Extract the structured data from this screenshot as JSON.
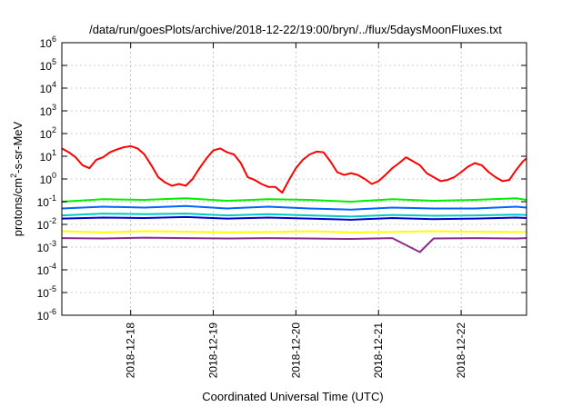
{
  "chart_data": {
    "type": "line",
    "title": "/data/run/goesPlots/archive/2018-12-22/19:00/bryn/../flux/5daysMoonFluxes.txt",
    "xlabel": "Coordinated Universal Time (UTC)",
    "ylabel": {
      "pre": "protons/cm",
      "sup": "2",
      "post": "-s-sr-MeV"
    },
    "yscale": "log",
    "ylim": [
      1e-06,
      1000000.0
    ],
    "xlim": [
      "2018-12-17T04:00",
      "2018-12-22T19:00"
    ],
    "grid": true,
    "y_ticks": [
      {
        "value": 1e-06,
        "base": "10",
        "exp": "-6"
      },
      {
        "value": 1e-05,
        "base": "10",
        "exp": "-5"
      },
      {
        "value": 0.0001,
        "base": "10",
        "exp": "-4"
      },
      {
        "value": 0.001,
        "base": "10",
        "exp": "-3"
      },
      {
        "value": 0.01,
        "base": "10",
        "exp": "-2"
      },
      {
        "value": 0.1,
        "base": "10",
        "exp": "-1"
      },
      {
        "value": 1,
        "base": "10",
        "exp": "0"
      },
      {
        "value": 10.0,
        "base": "10",
        "exp": "1"
      },
      {
        "value": 100.0,
        "base": "10",
        "exp": "2"
      },
      {
        "value": 1000.0,
        "base": "10",
        "exp": "3"
      },
      {
        "value": 10000.0,
        "base": "10",
        "exp": "4"
      },
      {
        "value": 100000.0,
        "base": "10",
        "exp": "5"
      },
      {
        "value": 1000000.0,
        "base": "10",
        "exp": "6"
      }
    ],
    "x_ticks": [
      {
        "value": "2018-12-18T00:00",
        "label": "2018-12-18"
      },
      {
        "value": "2018-12-19T00:00",
        "label": "2018-12-19"
      },
      {
        "value": "2018-12-20T00:00",
        "label": "2018-12-20"
      },
      {
        "value": "2018-12-21T00:00",
        "label": "2018-12-21"
      },
      {
        "value": "2018-12-22T00:00",
        "label": "2018-12-22"
      }
    ],
    "series": [
      {
        "color": "#ff0000",
        "x": [
          "2018-12-17T04:00",
          "2018-12-17T06:00",
          "2018-12-17T08:00",
          "2018-12-17T10:00",
          "2018-12-17T12:00",
          "2018-12-17T14:00",
          "2018-12-17T16:00",
          "2018-12-17T18:00",
          "2018-12-17T20:00",
          "2018-12-17T22:00",
          "2018-12-18T00:00",
          "2018-12-18T02:00",
          "2018-12-18T04:00",
          "2018-12-18T06:00",
          "2018-12-18T08:00",
          "2018-12-18T10:00",
          "2018-12-18T12:00",
          "2018-12-18T14:00",
          "2018-12-18T16:00",
          "2018-12-18T18:00",
          "2018-12-18T20:00",
          "2018-12-18T22:00",
          "2018-12-19T00:00",
          "2018-12-19T02:00",
          "2018-12-19T04:00",
          "2018-12-19T06:00",
          "2018-12-19T08:00",
          "2018-12-19T10:00",
          "2018-12-19T12:00",
          "2018-12-19T14:00",
          "2018-12-19T16:00",
          "2018-12-19T18:00",
          "2018-12-19T20:00",
          "2018-12-19T22:00",
          "2018-12-20T00:00",
          "2018-12-20T02:00",
          "2018-12-20T04:00",
          "2018-12-20T06:00",
          "2018-12-20T08:00",
          "2018-12-20T10:00",
          "2018-12-20T12:00",
          "2018-12-20T14:00",
          "2018-12-20T16:00",
          "2018-12-20T18:00",
          "2018-12-20T20:00",
          "2018-12-20T22:00",
          "2018-12-21T00:00",
          "2018-12-21T02:00",
          "2018-12-21T04:00",
          "2018-12-21T06:00",
          "2018-12-21T08:00",
          "2018-12-21T10:00",
          "2018-12-21T12:00",
          "2018-12-21T14:00",
          "2018-12-21T16:00",
          "2018-12-21T18:00",
          "2018-12-21T20:00",
          "2018-12-21T22:00",
          "2018-12-22T00:00",
          "2018-12-22T02:00",
          "2018-12-22T04:00",
          "2018-12-22T06:00",
          "2018-12-22T08:00",
          "2018-12-22T10:00",
          "2018-12-22T12:00",
          "2018-12-22T14:00",
          "2018-12-22T16:00",
          "2018-12-22T18:00",
          "2018-12-22T19:00"
        ],
        "values": [
          22,
          15,
          9,
          4,
          3,
          7,
          9,
          15,
          20,
          25,
          28,
          22,
          12,
          4,
          1.2,
          0.7,
          0.5,
          0.6,
          0.5,
          1,
          3,
          8,
          18,
          22,
          15,
          12,
          5,
          1.2,
          0.9,
          0.6,
          0.45,
          0.45,
          0.25,
          0.9,
          3,
          7,
          12,
          16,
          15,
          6,
          2,
          1.5,
          1.8,
          1.5,
          1,
          0.6,
          0.8,
          1.5,
          3,
          5,
          9,
          6,
          4,
          1.8,
          1.2,
          0.8,
          0.9,
          1.2,
          2,
          3.5,
          5,
          4,
          2,
          1.2,
          0.8,
          0.9,
          2.5,
          6,
          8
        ]
      },
      {
        "color": "#00ee00",
        "x": [
          "2018-12-17T04:00",
          "2018-12-17T16:00",
          "2018-12-18T04:00",
          "2018-12-18T16:00",
          "2018-12-19T04:00",
          "2018-12-19T16:00",
          "2018-12-20T04:00",
          "2018-12-20T16:00",
          "2018-12-21T04:00",
          "2018-12-21T16:00",
          "2018-12-22T04:00",
          "2018-12-22T16:00",
          "2018-12-22T19:00"
        ],
        "values": [
          0.1,
          0.13,
          0.12,
          0.14,
          0.11,
          0.13,
          0.12,
          0.1,
          0.13,
          0.11,
          0.12,
          0.14,
          0.12
        ]
      },
      {
        "color": "#0066ff",
        "x": [
          "2018-12-17T04:00",
          "2018-12-17T16:00",
          "2018-12-18T04:00",
          "2018-12-18T16:00",
          "2018-12-19T04:00",
          "2018-12-19T16:00",
          "2018-12-20T04:00",
          "2018-12-20T16:00",
          "2018-12-21T04:00",
          "2018-12-21T16:00",
          "2018-12-22T04:00",
          "2018-12-22T16:00",
          "2018-12-22T19:00"
        ],
        "values": [
          0.05,
          0.06,
          0.055,
          0.065,
          0.05,
          0.06,
          0.05,
          0.045,
          0.055,
          0.05,
          0.05,
          0.06,
          0.055
        ]
      },
      {
        "color": "#00c8c8",
        "x": [
          "2018-12-17T04:00",
          "2018-12-17T16:00",
          "2018-12-18T04:00",
          "2018-12-18T16:00",
          "2018-12-19T04:00",
          "2018-12-19T16:00",
          "2018-12-20T04:00",
          "2018-12-20T16:00",
          "2018-12-21T04:00",
          "2018-12-21T16:00",
          "2018-12-22T04:00",
          "2018-12-22T16:00",
          "2018-12-22T19:00"
        ],
        "values": [
          0.025,
          0.03,
          0.028,
          0.03,
          0.025,
          0.028,
          0.025,
          0.022,
          0.026,
          0.024,
          0.025,
          0.027,
          0.026
        ]
      },
      {
        "color": "#0000cc",
        "x": [
          "2018-12-17T04:00",
          "2018-12-17T16:00",
          "2018-12-18T04:00",
          "2018-12-18T16:00",
          "2018-12-19T04:00",
          "2018-12-19T16:00",
          "2018-12-20T04:00",
          "2018-12-20T16:00",
          "2018-12-21T04:00",
          "2018-12-21T16:00",
          "2018-12-22T04:00",
          "2018-12-22T16:00",
          "2018-12-22T19:00"
        ],
        "values": [
          0.018,
          0.02,
          0.019,
          0.021,
          0.018,
          0.02,
          0.018,
          0.016,
          0.019,
          0.017,
          0.018,
          0.02,
          0.019
        ]
      },
      {
        "color": "#ffff00",
        "x": [
          "2018-12-17T04:00",
          "2018-12-17T16:00",
          "2018-12-18T04:00",
          "2018-12-18T16:00",
          "2018-12-19T04:00",
          "2018-12-19T16:00",
          "2018-12-20T04:00",
          "2018-12-20T16:00",
          "2018-12-21T04:00",
          "2018-12-21T16:00",
          "2018-12-22T04:00",
          "2018-12-22T16:00",
          "2018-12-22T19:00"
        ],
        "values": [
          0.005,
          0.0045,
          0.005,
          0.0048,
          0.0045,
          0.0046,
          0.005,
          0.0045,
          0.0047,
          0.005,
          0.0048,
          0.0046,
          0.0047
        ]
      },
      {
        "color": "#8b2e8b",
        "x": [
          "2018-12-17T04:00",
          "2018-12-17T16:00",
          "2018-12-18T04:00",
          "2018-12-18T16:00",
          "2018-12-19T04:00",
          "2018-12-19T16:00",
          "2018-12-20T04:00",
          "2018-12-20T16:00",
          "2018-12-21T04:00",
          "2018-12-21T12:00",
          "2018-12-21T16:00",
          "2018-12-22T04:00",
          "2018-12-22T16:00",
          "2018-12-22T19:00"
        ],
        "values": [
          0.0025,
          0.0024,
          0.0026,
          0.0025,
          0.0024,
          0.0025,
          0.0024,
          0.0023,
          0.0025,
          0.0006,
          0.0024,
          0.0025,
          0.0024,
          0.0025
        ]
      }
    ]
  }
}
